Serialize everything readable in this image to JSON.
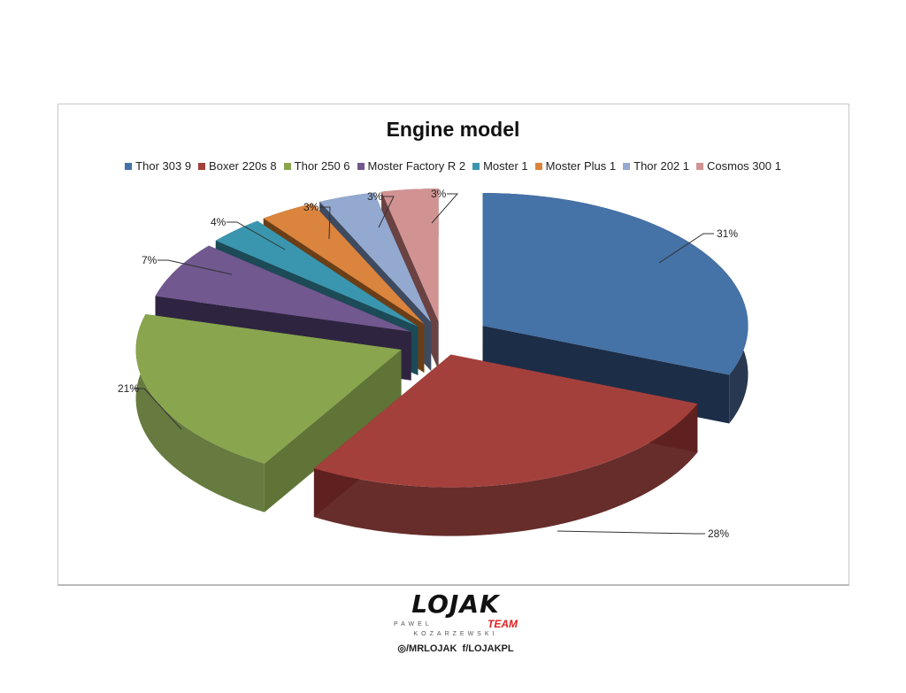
{
  "chart_data": {
    "type": "pie",
    "style": "3d-exploded",
    "title": "Engine model",
    "legend_position": "top",
    "slices": [
      {
        "name": "Thor 303 9",
        "value": 9,
        "label": "31%",
        "color": "#4572a7",
        "side": "#1c2d47"
      },
      {
        "name": "Boxer 220s 8",
        "value": 8,
        "label": "28%",
        "color": "#a4403c",
        "side": "#5e2220"
      },
      {
        "name": "Thor 250 6",
        "value": 6,
        "label": "21%",
        "color": "#89a54e",
        "side": "#5f7436"
      },
      {
        "name": "Moster Factory R 2",
        "value": 2,
        "label": "7%",
        "color": "#71588f",
        "side": "#2e2440"
      },
      {
        "name": "Moster 1",
        "value": 1,
        "label": "4%",
        "color": "#3a96ae",
        "side": "#1c4a56"
      },
      {
        "name": "Moster Plus 1",
        "value": 1,
        "label": "3%",
        "color": "#db843d",
        "side": "#6b3e18"
      },
      {
        "name": "Thor 202 1",
        "value": 1,
        "label": "3%",
        "color": "#93a9cf",
        "side": "#3e4a60"
      },
      {
        "name": "Cosmos 300 1",
        "value": 1,
        "label": "3%",
        "color": "#d19392",
        "side": "#6a4242"
      }
    ]
  },
  "footer": {
    "logo_text": "LOJAK",
    "logo_team": "TEAM",
    "logo_name_1": "PAWEL",
    "logo_name_2": "KOZARZEWSKI",
    "instagram": "◎/MRLOJAK",
    "facebook": "f/LOJAKPL"
  }
}
